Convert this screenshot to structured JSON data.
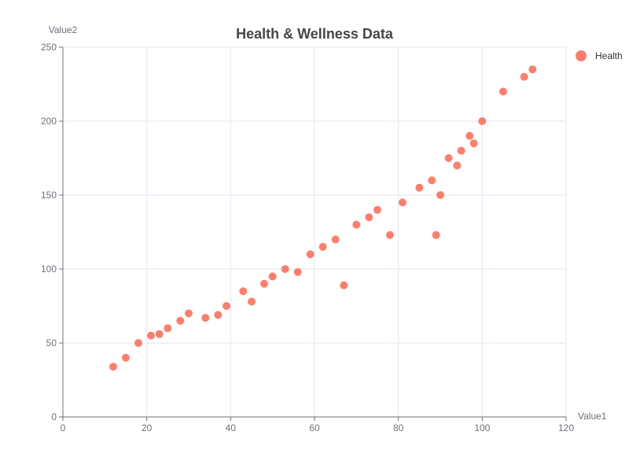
{
  "chart_data": {
    "type": "scatter",
    "title": "Health & Wellness Data",
    "xlabel": "Value1",
    "ylabel": "Value2",
    "xlim": [
      0,
      120
    ],
    "ylim": [
      0,
      250
    ],
    "xticks": [
      0,
      20,
      40,
      60,
      80,
      100,
      120
    ],
    "yticks": [
      0,
      50,
      100,
      150,
      200,
      250
    ],
    "grid": true,
    "legend_position": "top-right",
    "series": [
      {
        "name": "Health",
        "color": "#fa7f6f",
        "points": [
          [
            12,
            34
          ],
          [
            15,
            40
          ],
          [
            18,
            50
          ],
          [
            21,
            55
          ],
          [
            23,
            56
          ],
          [
            25,
            60
          ],
          [
            28,
            65
          ],
          [
            30,
            70
          ],
          [
            34,
            67
          ],
          [
            37,
            69
          ],
          [
            39,
            75
          ],
          [
            43,
            85
          ],
          [
            45,
            78
          ],
          [
            48,
            90
          ],
          [
            50,
            95
          ],
          [
            53,
            100
          ],
          [
            56,
            98
          ],
          [
            59,
            110
          ],
          [
            62,
            115
          ],
          [
            65,
            120
          ],
          [
            67,
            89
          ],
          [
            70,
            130
          ],
          [
            73,
            135
          ],
          [
            75,
            140
          ],
          [
            78,
            123
          ],
          [
            81,
            145
          ],
          [
            85,
            155
          ],
          [
            88,
            160
          ],
          [
            89,
            123
          ],
          [
            90,
            150
          ],
          [
            92,
            175
          ],
          [
            94,
            170
          ],
          [
            95,
            180
          ],
          [
            97,
            190
          ],
          [
            98,
            185
          ],
          [
            100,
            200
          ],
          [
            105,
            220
          ],
          [
            110,
            230
          ],
          [
            112,
            235
          ]
        ]
      }
    ]
  }
}
